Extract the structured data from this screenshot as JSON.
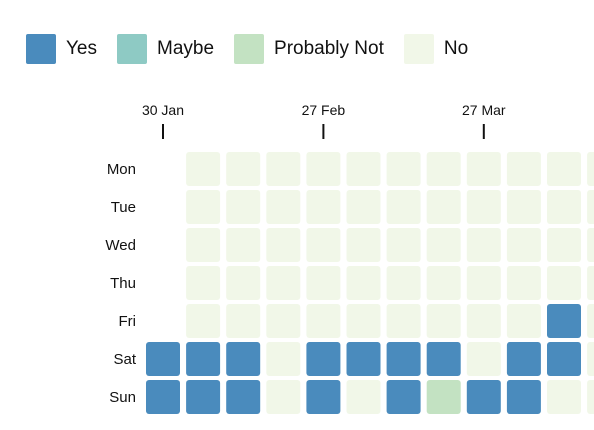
{
  "legend": [
    {
      "label": "Yes",
      "color": "#4a8bbd"
    },
    {
      "label": "Maybe",
      "color": "#8ecac4"
    },
    {
      "label": "Probably Not",
      "color": "#c3e2c2"
    },
    {
      "label": "No",
      "color": "#f1f7e8"
    }
  ],
  "chart_data": {
    "type": "heatmap",
    "title": "",
    "xlabel": "",
    "ylabel": "",
    "rows": [
      "Mon",
      "Tue",
      "Wed",
      "Thu",
      "Fri",
      "Sat",
      "Sun"
    ],
    "x_ticks": [
      {
        "label": "30 Jan",
        "week": 0
      },
      {
        "label": "27 Feb",
        "week": 4
      },
      {
        "label": "27 Mar",
        "week": 8
      }
    ],
    "categories": [
      "Yes",
      "Maybe",
      "Probably Not",
      "No"
    ],
    "weeks": [
      [
        "",
        "",
        "",
        "",
        "",
        "Yes",
        "Yes"
      ],
      [
        "No",
        "No",
        "No",
        "No",
        "No",
        "Yes",
        "Yes"
      ],
      [
        "No",
        "No",
        "No",
        "No",
        "No",
        "Yes",
        "Yes"
      ],
      [
        "No",
        "No",
        "No",
        "No",
        "No",
        "No",
        "No"
      ],
      [
        "No",
        "No",
        "No",
        "No",
        "No",
        "Yes",
        "Yes"
      ],
      [
        "No",
        "No",
        "No",
        "No",
        "No",
        "Yes",
        "No"
      ],
      [
        "No",
        "No",
        "No",
        "No",
        "No",
        "Yes",
        "Yes"
      ],
      [
        "No",
        "No",
        "No",
        "No",
        "No",
        "Yes",
        "Probably Not"
      ],
      [
        "No",
        "No",
        "No",
        "No",
        "No",
        "No",
        "Yes"
      ],
      [
        "No",
        "No",
        "No",
        "No",
        "No",
        "Yes",
        "Yes"
      ],
      [
        "No",
        "No",
        "No",
        "No",
        "Yes",
        "Yes",
        "No"
      ],
      [
        "No",
        "No",
        "No",
        "No",
        "No",
        "No",
        "No"
      ]
    ]
  }
}
